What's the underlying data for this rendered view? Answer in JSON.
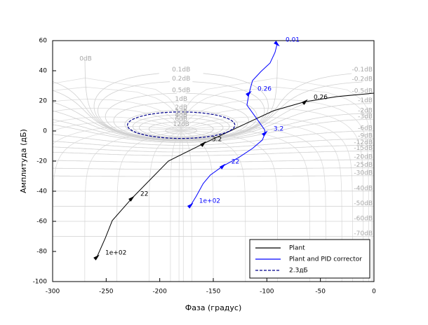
{
  "chart_data": {
    "type": "nichols",
    "xlabel": "Фаза (градус)",
    "ylabel": "Амплитуда (дБ)",
    "xlim": [
      -300,
      0
    ],
    "ylim": [
      -100,
      60
    ],
    "xticks": [
      -300,
      -250,
      -200,
      -150,
      -100,
      -50,
      0
    ],
    "yticks": [
      -100,
      -80,
      -60,
      -40,
      -20,
      0,
      20,
      40,
      60
    ],
    "legend": "lower right",
    "nichols_grid": [
      {
        "value": 0,
        "label": "0dB"
      },
      {
        "value": 0.1,
        "label": "0.1dB"
      },
      {
        "value": 0.2,
        "label": "0.2dB"
      },
      {
        "value": 0.5,
        "label": "0.5dB"
      },
      {
        "value": 1,
        "label": "1dB"
      },
      {
        "value": 2,
        "label": "2dB"
      },
      {
        "value": 3,
        "label": "3dB"
      },
      {
        "value": 4,
        "label": "4dB"
      },
      {
        "value": 6,
        "label": "6dB"
      },
      {
        "value": 12,
        "label": "12dB"
      },
      {
        "value": -0.1,
        "label": "-0.1dB"
      },
      {
        "value": -0.2,
        "label": "-0.2dB"
      },
      {
        "value": -0.5,
        "label": "-0.5dB"
      },
      {
        "value": -1,
        "label": "-1dB"
      },
      {
        "value": -2,
        "label": "-2dB"
      },
      {
        "value": -3,
        "label": "-3dB"
      },
      {
        "value": -6,
        "label": "-6dB"
      },
      {
        "value": -9,
        "label": "-9dB"
      },
      {
        "value": -12,
        "label": "-12dB"
      },
      {
        "value": -15,
        "label": "-15dB"
      },
      {
        "value": -20,
        "label": "-20dB"
      },
      {
        "value": -25,
        "label": "-25dB"
      },
      {
        "value": -30,
        "label": "-30dB"
      },
      {
        "value": -40,
        "label": "-40dB"
      },
      {
        "value": -50,
        "label": "-50dB"
      },
      {
        "value": -60,
        "label": "-60dB"
      },
      {
        "value": -70,
        "label": "-70dB"
      }
    ],
    "series": [
      {
        "name": "Plant",
        "color": "#000000",
        "x": [
          -258.7,
          -250.9,
          -244.3,
          -226,
          -192,
          -159.2,
          -133,
          -93.7,
          -64.2,
          -34.8,
          0
        ],
        "values": [
          -83.7,
          -71.2,
          -59.5,
          -44.7,
          -20,
          -8.4,
          0.5,
          13.5,
          19.5,
          22.8,
          25.1
        ],
        "annotations": [
          {
            "label": "1e+02",
            "x": -258.7,
            "y": -83.7
          },
          {
            "label": "22",
            "x": -226,
            "y": -44.7
          },
          {
            "label": "3.2",
            "x": -159.2,
            "y": -8.4
          },
          {
            "label": "0.26",
            "x": -64.2,
            "y": 19.5
          }
        ]
      },
      {
        "name": "Plant and PID corrector",
        "color": "#0000ff",
        "x": [
          -90.4,
          -92.4,
          -97,
          -105.5,
          -113.4,
          -116.6,
          -118.6,
          -110.1,
          -102.2,
          -101.6,
          -104.2,
          -113.4,
          -126.5,
          -141,
          -152.8,
          -159.4,
          -165.9,
          -171.1
        ],
        "values": [
          57.7,
          52.1,
          45.1,
          39.5,
          33.5,
          25.1,
          17.2,
          8.8,
          0.9,
          -1.4,
          -6,
          -11.6,
          -17.7,
          -23.3,
          -29.3,
          -34.9,
          -43.3,
          -49.3
        ],
        "annotations": [
          {
            "label": "0.01",
            "x": -90.4,
            "y": 57.7
          },
          {
            "label": "0.26",
            "x": -116.6,
            "y": 25.1
          },
          {
            "label": "3.2",
            "x": -101.6,
            "y": -1.4
          },
          {
            "label": "22",
            "x": -141,
            "y": -23.3
          },
          {
            "label": "1e+02",
            "x": -171.1,
            "y": -49.3
          }
        ]
      },
      {
        "name": "2.3дБ",
        "color": "#00008b",
        "dash": true,
        "gain_db": 2.3
      }
    ]
  }
}
